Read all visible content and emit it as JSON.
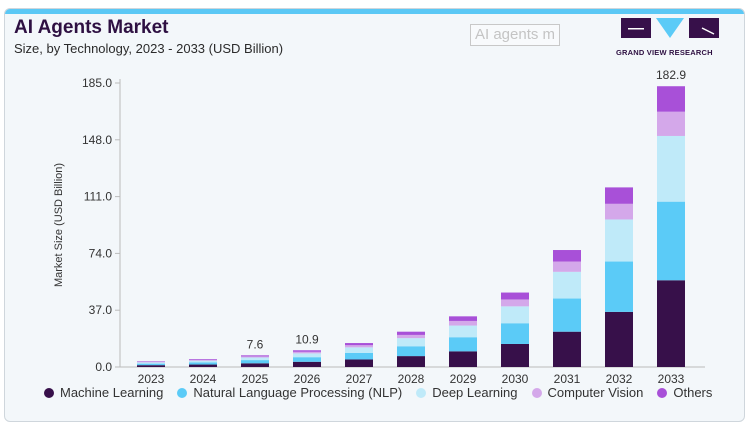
{
  "header": {
    "title": "AI Agents Market",
    "subtitle": "Size, by Technology, 2023 - 2033 (USD Billion)",
    "logo_text": "GRAND VIEW RESEARCH",
    "watermark": "AI agents m"
  },
  "colors": {
    "Machine Learning": "#37104a",
    "Natural Language Processing (NLP)": "#5bcbf7",
    "Deep Learning": "#bfeaf9",
    "Computer Vision": "#d4a8ea",
    "Others": "#a850d8",
    "accent": "#5bc8f5"
  },
  "chart_data": {
    "type": "bar",
    "stacked": true,
    "title": "AI Agents Market",
    "subtitle": "Size, by Technology, 2023 - 2033 (USD Billion)",
    "xlabel": "",
    "ylabel": "Market Size (USD Billion)",
    "ylim": [
      0,
      185
    ],
    "yticks": [
      "0.0",
      "37.0",
      "74.0",
      "111.0",
      "148.0",
      "185.0"
    ],
    "grid": false,
    "legend_position": "bottom",
    "categories": [
      "2023",
      "2024",
      "2025",
      "2026",
      "2027",
      "2028",
      "2029",
      "2030",
      "2031",
      "2032",
      "2033"
    ],
    "series": [
      {
        "name": "Machine Learning",
        "values": [
          1.2,
          1.6,
          2.4,
          3.4,
          4.9,
          7.1,
          10.2,
          15.0,
          23.0,
          35.9,
          56.5
        ]
      },
      {
        "name": "Natural Language Processing (NLP)",
        "values": [
          1.0,
          1.4,
          2.1,
          3.0,
          4.3,
          6.4,
          9.2,
          13.5,
          21.6,
          32.8,
          51.2
        ]
      },
      {
        "name": "Deep Learning",
        "values": [
          0.8,
          1.1,
          1.7,
          2.5,
          3.6,
          5.3,
          7.6,
          11.0,
          17.4,
          27.4,
          42.8
        ]
      },
      {
        "name": "Computer Vision",
        "values": [
          0.35,
          0.5,
          0.7,
          1.0,
          1.4,
          2.1,
          3.0,
          4.5,
          6.7,
          10.2,
          15.8
        ]
      },
      {
        "name": "Others",
        "values": [
          0.35,
          0.5,
          0.7,
          1.0,
          1.4,
          2.1,
          3.0,
          4.5,
          7.5,
          10.7,
          16.6
        ]
      }
    ],
    "data_labels": [
      {
        "category": "2025",
        "text": "7.6"
      },
      {
        "category": "2026",
        "text": "10.9"
      },
      {
        "category": "2033",
        "text": "182.9"
      }
    ]
  }
}
